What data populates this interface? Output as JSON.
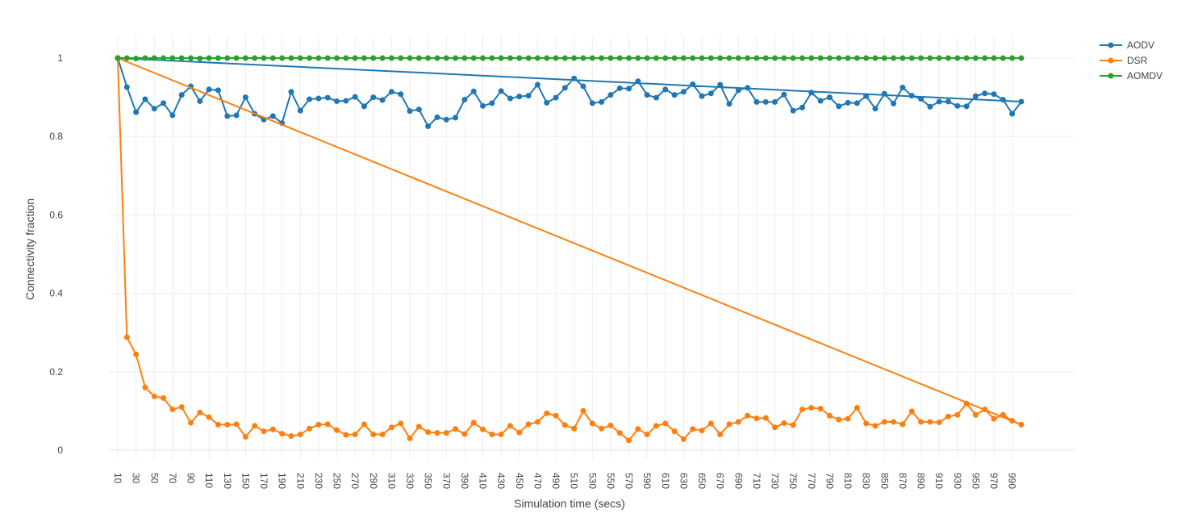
{
  "chart_data": {
    "type": "line",
    "xlabel": "Simulation time (secs)",
    "ylabel": "Connectivity fraction",
    "x_tick_labels": [
      "10",
      "30",
      "50",
      "70",
      "90",
      "110",
      "130",
      "150",
      "170",
      "190",
      "210",
      "230",
      "250",
      "270",
      "290",
      "310",
      "330",
      "350",
      "370",
      "390",
      "410",
      "430",
      "450",
      "470",
      "490",
      "510",
      "530",
      "550",
      "570",
      "590",
      "610",
      "630",
      "650",
      "670",
      "690",
      "710",
      "730",
      "750",
      "770",
      "790",
      "810",
      "830",
      "850",
      "870",
      "890",
      "910",
      "930",
      "950",
      "970",
      "990"
    ],
    "y_ticks": [
      0,
      0.2,
      0.4,
      0.6,
      0.8,
      1
    ],
    "y_tick_labels": [
      "0",
      "0.2",
      "0.4",
      "0.6",
      "0.8",
      "1"
    ],
    "xlim": [
      10,
      1000
    ],
    "ylim": [
      -0.03,
      1.05
    ],
    "grid": true,
    "legend_position": "top-right",
    "x": [
      10,
      20,
      30,
      40,
      50,
      60,
      70,
      80,
      90,
      100,
      110,
      120,
      130,
      140,
      150,
      160,
      170,
      180,
      190,
      200,
      210,
      220,
      230,
      240,
      250,
      260,
      270,
      280,
      290,
      300,
      310,
      320,
      330,
      340,
      350,
      360,
      370,
      380,
      390,
      400,
      410,
      420,
      430,
      440,
      450,
      460,
      470,
      480,
      490,
      500,
      510,
      520,
      530,
      540,
      550,
      560,
      570,
      580,
      590,
      600,
      610,
      620,
      630,
      640,
      650,
      660,
      670,
      680,
      690,
      700,
      710,
      720,
      730,
      740,
      750,
      760,
      770,
      780,
      790,
      800,
      810,
      820,
      830,
      840,
      850,
      860,
      870,
      880,
      890,
      900,
      910,
      920,
      930,
      940,
      950,
      960,
      970,
      980,
      990,
      1000,
      10
    ],
    "series": [
      {
        "name": "AODV",
        "color": "#1f77b4",
        "values": [
          1.0,
          0.926,
          0.862,
          0.895,
          0.871,
          0.885,
          0.854,
          0.906,
          0.928,
          0.89,
          0.92,
          0.918,
          0.852,
          0.854,
          0.9,
          0.858,
          0.843,
          0.852,
          0.834,
          0.914,
          0.866,
          0.895,
          0.897,
          0.899,
          0.89,
          0.891,
          0.901,
          0.877,
          0.9,
          0.893,
          0.914,
          0.908,
          0.865,
          0.869,
          0.826,
          0.849,
          0.843,
          0.848,
          0.894,
          0.915,
          0.878,
          0.885,
          0.916,
          0.897,
          0.902,
          0.904,
          0.932,
          0.886,
          0.899,
          0.924,
          0.948,
          0.928,
          0.885,
          0.888,
          0.906,
          0.923,
          0.922,
          0.941,
          0.906,
          0.899,
          0.92,
          0.906,
          0.914,
          0.933,
          0.903,
          0.91,
          0.932,
          0.883,
          0.918,
          0.924,
          0.888,
          0.888,
          0.888,
          0.907,
          0.866,
          0.874,
          0.912,
          0.891,
          0.9,
          0.877,
          0.886,
          0.885,
          0.903,
          0.871,
          0.909,
          0.884,
          0.925,
          0.904,
          0.896,
          0.876,
          0.889,
          0.889,
          0.878,
          0.877,
          0.903,
          0.91,
          0.908,
          0.894,
          0.858,
          0.889,
          1.0
        ]
      },
      {
        "name": "DSR",
        "color": "#ff7f0e",
        "values": [
          1.0,
          0.288,
          0.244,
          0.16,
          0.137,
          0.133,
          0.104,
          0.11,
          0.07,
          0.096,
          0.084,
          0.065,
          0.065,
          0.066,
          0.034,
          0.062,
          0.048,
          0.053,
          0.042,
          0.036,
          0.04,
          0.055,
          0.065,
          0.066,
          0.051,
          0.039,
          0.04,
          0.066,
          0.04,
          0.04,
          0.058,
          0.068,
          0.03,
          0.06,
          0.046,
          0.044,
          0.044,
          0.054,
          0.041,
          0.07,
          0.053,
          0.04,
          0.04,
          0.062,
          0.045,
          0.066,
          0.072,
          0.094,
          0.088,
          0.064,
          0.055,
          0.1,
          0.068,
          0.055,
          0.063,
          0.044,
          0.025,
          0.054,
          0.04,
          0.062,
          0.068,
          0.048,
          0.028,
          0.054,
          0.05,
          0.068,
          0.04,
          0.066,
          0.072,
          0.088,
          0.081,
          0.082,
          0.058,
          0.069,
          0.064,
          0.104,
          0.108,
          0.106,
          0.088,
          0.078,
          0.08,
          0.108,
          0.068,
          0.062,
          0.072,
          0.072,
          0.066,
          0.099,
          0.072,
          0.072,
          0.071,
          0.086,
          0.09,
          0.119,
          0.09,
          0.104,
          0.08,
          0.09,
          0.075,
          0.065,
          1.0
        ]
      },
      {
        "name": "AOMDV",
        "color": "#2ca02c",
        "values": [
          1,
          1,
          0.999,
          1,
          1,
          1,
          1,
          1,
          1,
          0.999,
          1,
          1,
          1,
          1,
          1,
          1,
          1,
          1,
          1,
          1,
          1,
          1,
          1,
          1,
          1,
          1,
          1,
          1,
          1,
          1,
          1,
          1,
          1,
          1,
          1,
          1,
          1,
          1,
          1,
          1,
          1,
          1,
          1,
          1,
          1,
          1,
          1,
          1,
          1,
          1,
          1,
          1,
          1,
          1,
          1,
          1,
          1,
          1,
          1,
          1,
          1,
          1,
          1,
          1,
          1,
          1,
          1,
          1,
          1,
          1,
          1,
          1,
          1,
          1,
          1,
          1,
          1,
          1,
          1,
          1,
          1,
          1,
          1,
          1,
          1,
          1,
          1,
          1,
          1,
          1,
          1,
          1,
          1,
          1,
          1,
          1,
          1,
          1,
          1,
          1,
          1
        ]
      }
    ]
  }
}
